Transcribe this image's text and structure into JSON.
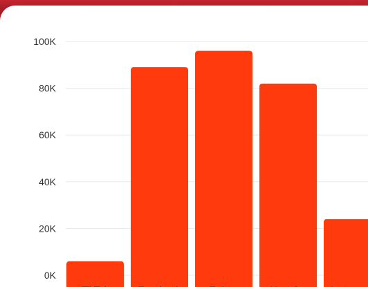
{
  "colors": {
    "frame": "#a81e28",
    "bar": "#ff3a0c",
    "card": "#ffffff"
  },
  "chart_data": {
    "type": "bar",
    "categories": [
      "TikTok",
      "Facebook",
      "Twitter",
      "Youtube",
      "Instagram"
    ],
    "values": [
      6000,
      89000,
      96000,
      82000,
      24000
    ],
    "ylim": [
      0,
      100000
    ],
    "yticks": [
      0,
      20000,
      40000,
      60000,
      80000,
      100000
    ],
    "ytick_labels": [
      "0K",
      "20K",
      "40K",
      "60K",
      "80K",
      "100K"
    ],
    "grid": true,
    "title": "",
    "xlabel": "",
    "ylabel": ""
  }
}
